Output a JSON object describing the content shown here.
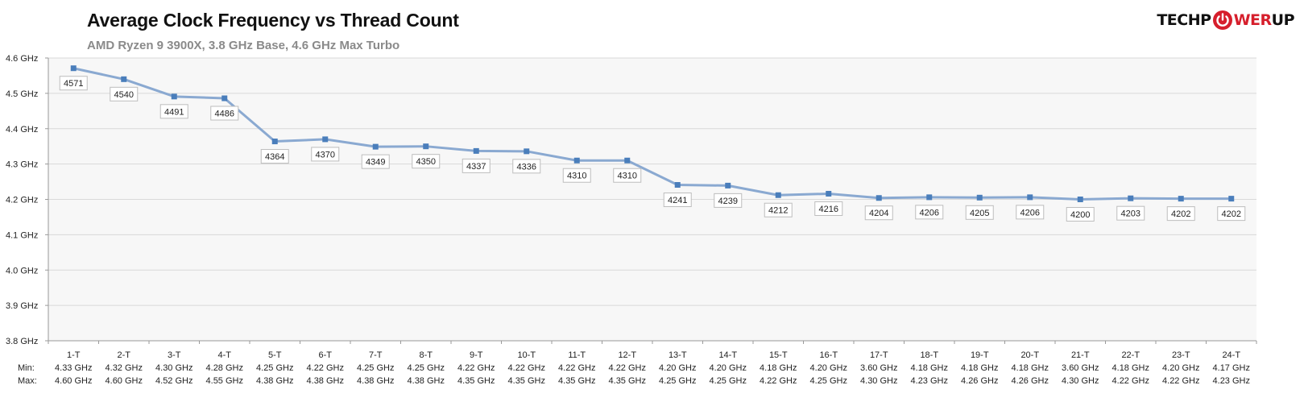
{
  "header": {
    "title": "Average Clock Frequency vs Thread Count",
    "subtitle": "AMD Ryzen 9 3900X, 3.8 GHz Base, 4.6 GHz Max Turbo"
  },
  "logo": {
    "part1": "TECHP",
    "part2": "WER",
    "part3": "UP",
    "icon": "power-icon",
    "accent_color": "#d61f2c"
  },
  "chart_data": {
    "type": "line",
    "title": "Average Clock Frequency vs Thread Count",
    "subtitle": "AMD Ryzen 9 3900X, 3.8 GHz Base, 4.6 GHz Max Turbo",
    "categories": [
      "1-T",
      "2-T",
      "3-T",
      "4-T",
      "5-T",
      "6-T",
      "7-T",
      "8-T",
      "9-T",
      "10-T",
      "11-T",
      "12-T",
      "13-T",
      "14-T",
      "15-T",
      "16-T",
      "17-T",
      "18-T",
      "19-T",
      "20-T",
      "21-T",
      "22-T",
      "23-T",
      "24-T"
    ],
    "values": [
      4571,
      4540,
      4491,
      4486,
      4364,
      4370,
      4349,
      4350,
      4337,
      4336,
      4310,
      4310,
      4241,
      4239,
      4212,
      4216,
      4204,
      4206,
      4205,
      4206,
      4200,
      4203,
      4202,
      4202
    ],
    "ylim": [
      3800,
      4600
    ],
    "yticks": [
      {
        "value": 3800,
        "label": "3.8 GHz"
      },
      {
        "value": 3900,
        "label": "3.9 GHz"
      },
      {
        "value": 4000,
        "label": "4.0 GHz"
      },
      {
        "value": 4100,
        "label": "4.1 GHz"
      },
      {
        "value": 4200,
        "label": "4.2 GHz"
      },
      {
        "value": 4300,
        "label": "4.3 GHz"
      },
      {
        "value": 4400,
        "label": "4.4 GHz"
      },
      {
        "value": 4500,
        "label": "4.5 GHz"
      },
      {
        "value": 4600,
        "label": "4.6 GHz"
      }
    ],
    "min_label": "Min:",
    "max_label": "Max:",
    "min": [
      "4.33 GHz",
      "4.32 GHz",
      "4.30 GHz",
      "4.28 GHz",
      "4.25 GHz",
      "4.22 GHz",
      "4.25 GHz",
      "4.25 GHz",
      "4.22 GHz",
      "4.22 GHz",
      "4.22 GHz",
      "4.22 GHz",
      "4.20 GHz",
      "4.20 GHz",
      "4.18 GHz",
      "4.20 GHz",
      "3.60 GHz",
      "4.18 GHz",
      "4.18 GHz",
      "4.18 GHz",
      "3.60 GHz",
      "4.18 GHz",
      "4.20 GHz",
      "4.17 GHz"
    ],
    "max": [
      "4.60 GHz",
      "4.60 GHz",
      "4.52 GHz",
      "4.55 GHz",
      "4.38 GHz",
      "4.38 GHz",
      "4.38 GHz",
      "4.38 GHz",
      "4.35 GHz",
      "4.35 GHz",
      "4.35 GHz",
      "4.35 GHz",
      "4.25 GHz",
      "4.25 GHz",
      "4.22 GHz",
      "4.25 GHz",
      "4.30 GHz",
      "4.23 GHz",
      "4.26 GHz",
      "4.26 GHz",
      "4.30 GHz",
      "4.22 GHz",
      "4.22 GHz",
      "4.23 GHz"
    ],
    "grid": true,
    "legend": "none",
    "colors": {
      "line": "#8aa9d1",
      "marker": "#4a7ebb",
      "plot_bg": "#f7f7f7",
      "grid": "#d9d9d9"
    }
  }
}
